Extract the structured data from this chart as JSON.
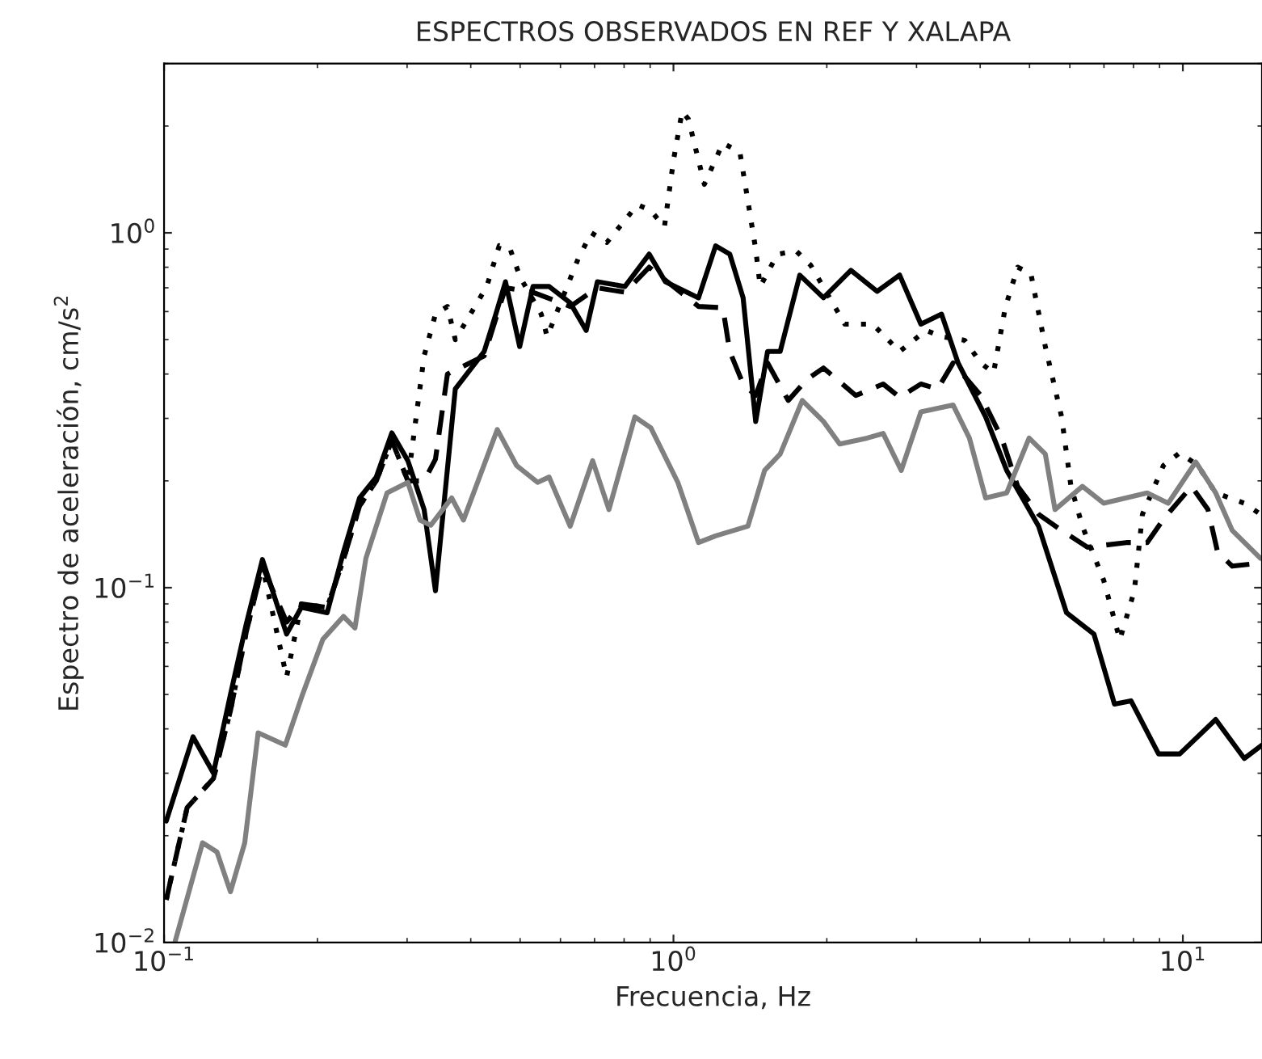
{
  "chart_data": {
    "type": "line",
    "title": "ESPECTROS OBSERVADOS EN REF Y XALAPA",
    "xlabel": "Frecuencia, Hz",
    "ylabel": "Espectro de aceleración, cm/s$^{2}$",
    "log": "xy",
    "grid": false,
    "legend": false,
    "marker": "none",
    "xlim": [
      0.1,
      14.3
    ],
    "ylim": [
      0.01,
      3
    ],
    "xticks": [
      {
        "value": 0.1,
        "label": "10$^{−1}$"
      },
      {
        "value": 1,
        "label": "10$^{0}$"
      },
      {
        "value": 10,
        "label": "10$^{1}$"
      }
    ],
    "yticks": [
      {
        "value": 0.01,
        "label": "10$^{−2}$"
      },
      {
        "value": 0.1,
        "label": "10$^{−1}$"
      },
      {
        "value": 1,
        "label": "10$^{0}$"
      }
    ],
    "series": [
      {
        "color": "#000000",
        "line_style": "solid",
        "x": [
          0.101,
          0.114,
          0.125,
          0.135,
          0.145,
          0.156,
          0.174,
          0.186,
          0.209,
          0.225,
          0.242,
          0.261,
          0.28,
          0.301,
          0.324,
          0.341,
          0.373,
          0.425,
          0.448,
          0.468,
          0.499,
          0.53,
          0.57,
          0.627,
          0.674,
          0.709,
          0.803,
          0.896,
          0.964,
          1.12,
          1.21,
          1.29,
          1.37,
          1.45,
          1.53,
          1.62,
          1.77,
          1.97,
          2.23,
          2.51,
          2.78,
          3.06,
          3.36,
          3.62,
          4.1,
          4.51,
          5.21,
          5.91,
          6.69,
          7.34,
          7.91,
          8.96,
          9.86,
          11.6,
          13.2,
          14.3
        ],
        "values": [
          0.022,
          0.038,
          0.03,
          0.05,
          0.079,
          0.12,
          0.074,
          0.088,
          0.085,
          0.126,
          0.179,
          0.205,
          0.273,
          0.228,
          0.166,
          0.098,
          0.363,
          0.463,
          0.59,
          0.728,
          0.478,
          0.706,
          0.706,
          0.635,
          0.531,
          0.728,
          0.706,
          0.871,
          0.728,
          0.656,
          0.919,
          0.871,
          0.656,
          0.294,
          0.463,
          0.463,
          0.76,
          0.656,
          0.784,
          0.684,
          0.76,
          0.553,
          0.59,
          0.43,
          0.303,
          0.214,
          0.149,
          0.085,
          0.074,
          0.047,
          0.048,
          0.034,
          0.034,
          0.0425,
          0.033,
          0.036
        ]
      },
      {
        "color": "#000000",
        "line_style": "dashed",
        "x": [
          0.101,
          0.111,
          0.125,
          0.135,
          0.145,
          0.156,
          0.174,
          0.186,
          0.209,
          0.225,
          0.242,
          0.261,
          0.28,
          0.301,
          0.324,
          0.341,
          0.36,
          0.425,
          0.468,
          0.53,
          0.627,
          0.709,
          0.803,
          0.896,
          1.12,
          1.25,
          1.29,
          1.37,
          1.45,
          1.53,
          1.68,
          1.83,
          1.97,
          2.28,
          2.58,
          2.78,
          3.06,
          3.3,
          3.54,
          4.01,
          4.41,
          4.74,
          5.21,
          5.78,
          6.5,
          7.74,
          8.51,
          9.16,
          10.4,
          11.2,
          11.7,
          12.5,
          13.9
        ],
        "values": [
          0.0132,
          0.024,
          0.029,
          0.045,
          0.075,
          0.115,
          0.08,
          0.09,
          0.088,
          0.12,
          0.17,
          0.2,
          0.26,
          0.2,
          0.2,
          0.23,
          0.4,
          0.45,
          0.7,
          0.68,
          0.62,
          0.7,
          0.68,
          0.8,
          0.62,
          0.615,
          0.463,
          0.375,
          0.348,
          0.43,
          0.337,
          0.387,
          0.416,
          0.348,
          0.375,
          0.344,
          0.375,
          0.363,
          0.43,
          0.348,
          0.264,
          0.193,
          0.161,
          0.145,
          0.13,
          0.134,
          0.134,
          0.156,
          0.193,
          0.166,
          0.126,
          0.115,
          0.117
        ]
      },
      {
        "color": "#000000",
        "line_style": "dotted",
        "x": [
          0.101,
          0.111,
          0.125,
          0.135,
          0.145,
          0.156,
          0.174,
          0.186,
          0.209,
          0.225,
          0.242,
          0.261,
          0.28,
          0.301,
          0.324,
          0.341,
          0.36,
          0.373,
          0.43,
          0.455,
          0.478,
          0.5,
          0.55,
          0.565,
          0.65,
          0.69,
          0.74,
          0.85,
          0.9,
          0.96,
          1.0,
          1.04,
          1.07,
          1.15,
          1.25,
          1.35,
          1.4,
          1.45,
          1.48,
          1.6,
          1.74,
          1.86,
          2.17,
          2.46,
          2.78,
          3.13,
          3.36,
          3.73,
          4.01,
          4.25,
          4.48,
          4.74,
          5.03,
          5.37,
          5.78,
          6.03,
          6.35,
          6.99,
          7.52,
          8.03,
          8.33,
          9.16,
          9.86,
          10.7,
          11.6,
          13.2,
          14.2
        ],
        "values": [
          0.0132,
          0.024,
          0.029,
          0.045,
          0.075,
          0.115,
          0.056,
          0.09,
          0.088,
          0.12,
          0.17,
          0.2,
          0.26,
          0.2,
          0.45,
          0.59,
          0.62,
          0.5,
          0.706,
          0.92,
          0.9,
          0.75,
          0.59,
          0.51,
          0.845,
          1.0,
          0.94,
          1.2,
          1.16,
          1.04,
          1.6,
          2.2,
          2.09,
          1.37,
          1.79,
          1.69,
          1.23,
          0.9,
          0.706,
          0.87,
          0.89,
          0.81,
          0.553,
          0.553,
          0.463,
          0.531,
          0.51,
          0.498,
          0.43,
          0.403,
          0.615,
          0.8,
          0.768,
          0.478,
          0.303,
          0.193,
          0.149,
          0.105,
          0.0713,
          0.098,
          0.161,
          0.221,
          0.24,
          0.221,
          0.185,
          0.173,
          0.161
        ]
      },
      {
        "color": "#808080",
        "line_style": "solid",
        "x": [
          0.105,
          0.119,
          0.127,
          0.135,
          0.144,
          0.153,
          0.173,
          0.187,
          0.205,
          0.225,
          0.237,
          0.249,
          0.274,
          0.301,
          0.318,
          0.334,
          0.367,
          0.387,
          0.451,
          0.492,
          0.541,
          0.57,
          0.627,
          0.694,
          0.747,
          0.84,
          0.903,
          1.02,
          1.12,
          1.21,
          1.4,
          1.51,
          1.62,
          1.79,
          1.97,
          2.12,
          2.4,
          2.58,
          2.8,
          3.06,
          3.54,
          3.81,
          4.1,
          4.51,
          4.99,
          5.37,
          5.61,
          6.35,
          6.99,
          8.51,
          9.36,
          10.6,
          11.6,
          12.5,
          14.2
        ],
        "values": [
          0.01,
          0.0191,
          0.018,
          0.0139,
          0.0191,
          0.039,
          0.036,
          0.05,
          0.0715,
          0.083,
          0.077,
          0.121,
          0.185,
          0.198,
          0.155,
          0.15,
          0.179,
          0.155,
          0.279,
          0.221,
          0.198,
          0.205,
          0.149,
          0.228,
          0.166,
          0.303,
          0.282,
          0.198,
          0.134,
          0.14,
          0.149,
          0.214,
          0.238,
          0.337,
          0.294,
          0.254,
          0.264,
          0.272,
          0.214,
          0.313,
          0.327,
          0.264,
          0.179,
          0.185,
          0.264,
          0.238,
          0.166,
          0.193,
          0.173,
          0.185,
          0.173,
          0.226,
          0.185,
          0.145,
          0.121
        ]
      }
    ]
  }
}
